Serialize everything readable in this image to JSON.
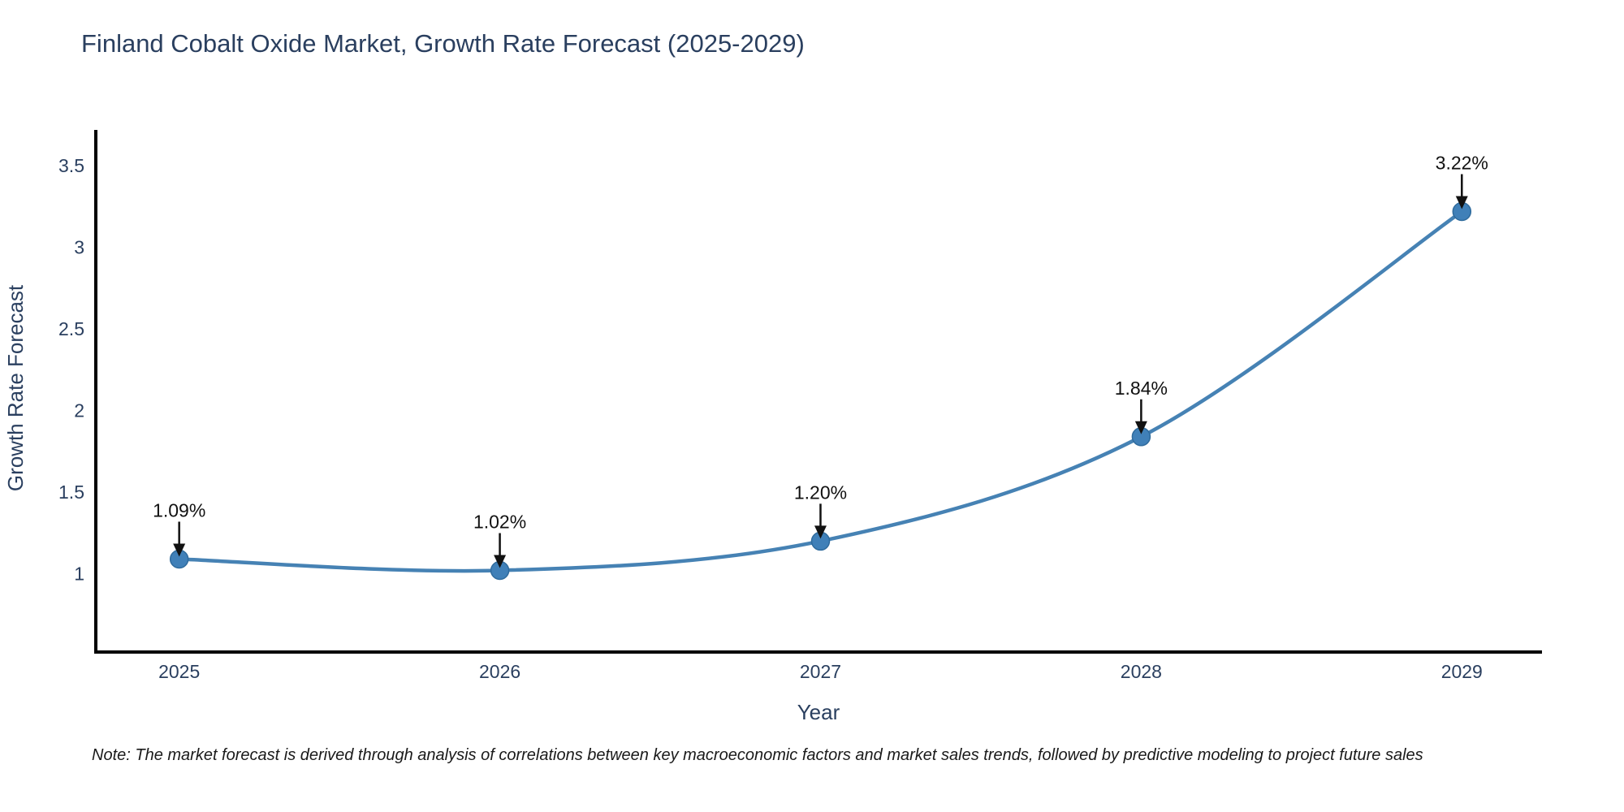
{
  "title": "Finland Cobalt Oxide Market, Growth Rate Forecast (2025-2029)",
  "note": "Note: The market forecast is derived through analysis of correlations between key macroeconomic factors and market sales trends, followed by predictive modeling to project future sales",
  "colors": {
    "background": "#ffffff",
    "title_text": "#2a3f5f",
    "axis_text": "#2a3f5f",
    "axis_line": "#000000",
    "line": "#4682b4",
    "marker_fill": "#4080b8",
    "marker_edge": "#2f6b9d",
    "annotation_text": "#111111",
    "arrow": "#111111"
  },
  "chart_data": {
    "type": "line",
    "title": "Finland Cobalt Oxide Market, Growth Rate Forecast (2025-2029)",
    "xlabel": "Year",
    "ylabel": "Growth Rate Forecast",
    "x": [
      2025,
      2026,
      2027,
      2028,
      2029
    ],
    "values": [
      1.09,
      1.02,
      1.2,
      1.84,
      3.22
    ],
    "annotations": [
      "1.09%",
      "1.02%",
      "1.20%",
      "1.84%",
      "3.22%"
    ],
    "x_tick_labels": [
      "2025",
      "2026",
      "2027",
      "2028",
      "2029"
    ],
    "y_ticks": [
      1,
      1.5,
      2,
      2.5,
      3,
      3.5
    ],
    "y_tick_labels": [
      "1",
      "1.5",
      "2",
      "2.5",
      "3",
      "3.5"
    ],
    "xlim": [
      2024.74,
      2029.25
    ],
    "ylim": [
      0.52,
      3.72
    ],
    "grid": false,
    "legend": "none",
    "line_shape": "spline",
    "series_name": "Growth Rate Forecast"
  }
}
